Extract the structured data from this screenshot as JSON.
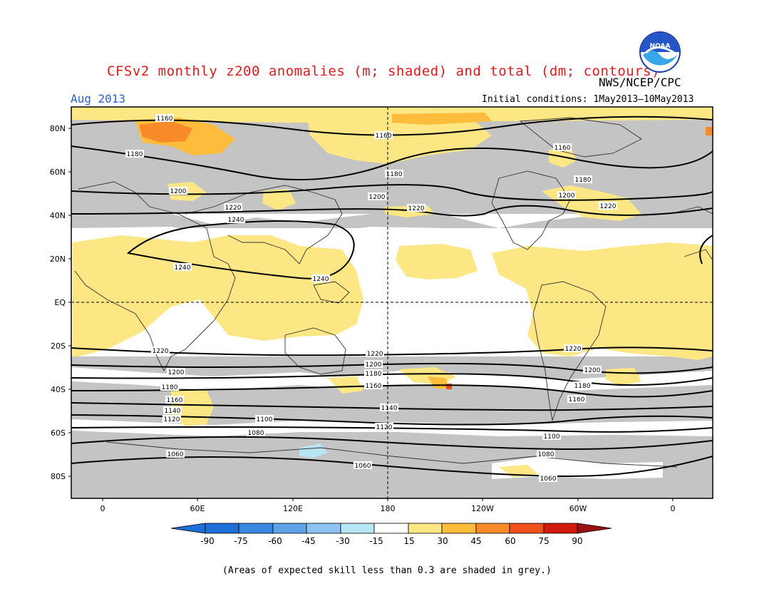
{
  "title": "CFSv2 monthly z200 anomalies (m; shaded) and total (dm; contours)",
  "organization": "NWS/NCEP/CPC",
  "logo_text": "NOAA",
  "valid_month": "Aug 2013",
  "initial_conditions": "Initial conditions: 1May2013—10May2013",
  "footnote": "(Areas of expected skill less than 0.3 are shaded in grey.)",
  "lat_labels": [
    "80N",
    "60N",
    "40N",
    "20N",
    "EQ",
    "20S",
    "40S",
    "60S",
    "80S"
  ],
  "lon_labels": [
    "0",
    "60E",
    "120E",
    "180",
    "120W",
    "60W",
    "0"
  ],
  "colorbar": {
    "ticks": [
      "-90",
      "-75",
      "-60",
      "-45",
      "-30",
      "-15",
      "15",
      "30",
      "45",
      "60",
      "75",
      "90"
    ],
    "colors": [
      "#1e6fd8",
      "#3b86e0",
      "#5ea3ea",
      "#8dc2f2",
      "#b6e6f4",
      "#ffffff",
      "#fde684",
      "#fdbc3c",
      "#f98a2a",
      "#f0501c",
      "#d31a0f",
      "#9b1010"
    ]
  },
  "colors": {
    "title": "#e31a1c",
    "month": "#2b62d6",
    "low_skill_grey": "#c4c4c4",
    "weak_positive": "#fde684"
  },
  "contour_labels": {
    "north": [
      "1160",
      "1160",
      "1160",
      "1180",
      "1180",
      "1180",
      "1200",
      "1200",
      "1200",
      "1220",
      "1220",
      "1220",
      "1240",
      "1240",
      "1240"
    ],
    "south": [
      "1220",
      "1220",
      "1220",
      "1200",
      "1200",
      "1200",
      "1180",
      "1180",
      "1180",
      "1160",
      "1160",
      "1160",
      "1140",
      "1140",
      "1120",
      "1120",
      "1100",
      "1100",
      "1080",
      "1080",
      "1060",
      "1060",
      "1060"
    ]
  }
}
